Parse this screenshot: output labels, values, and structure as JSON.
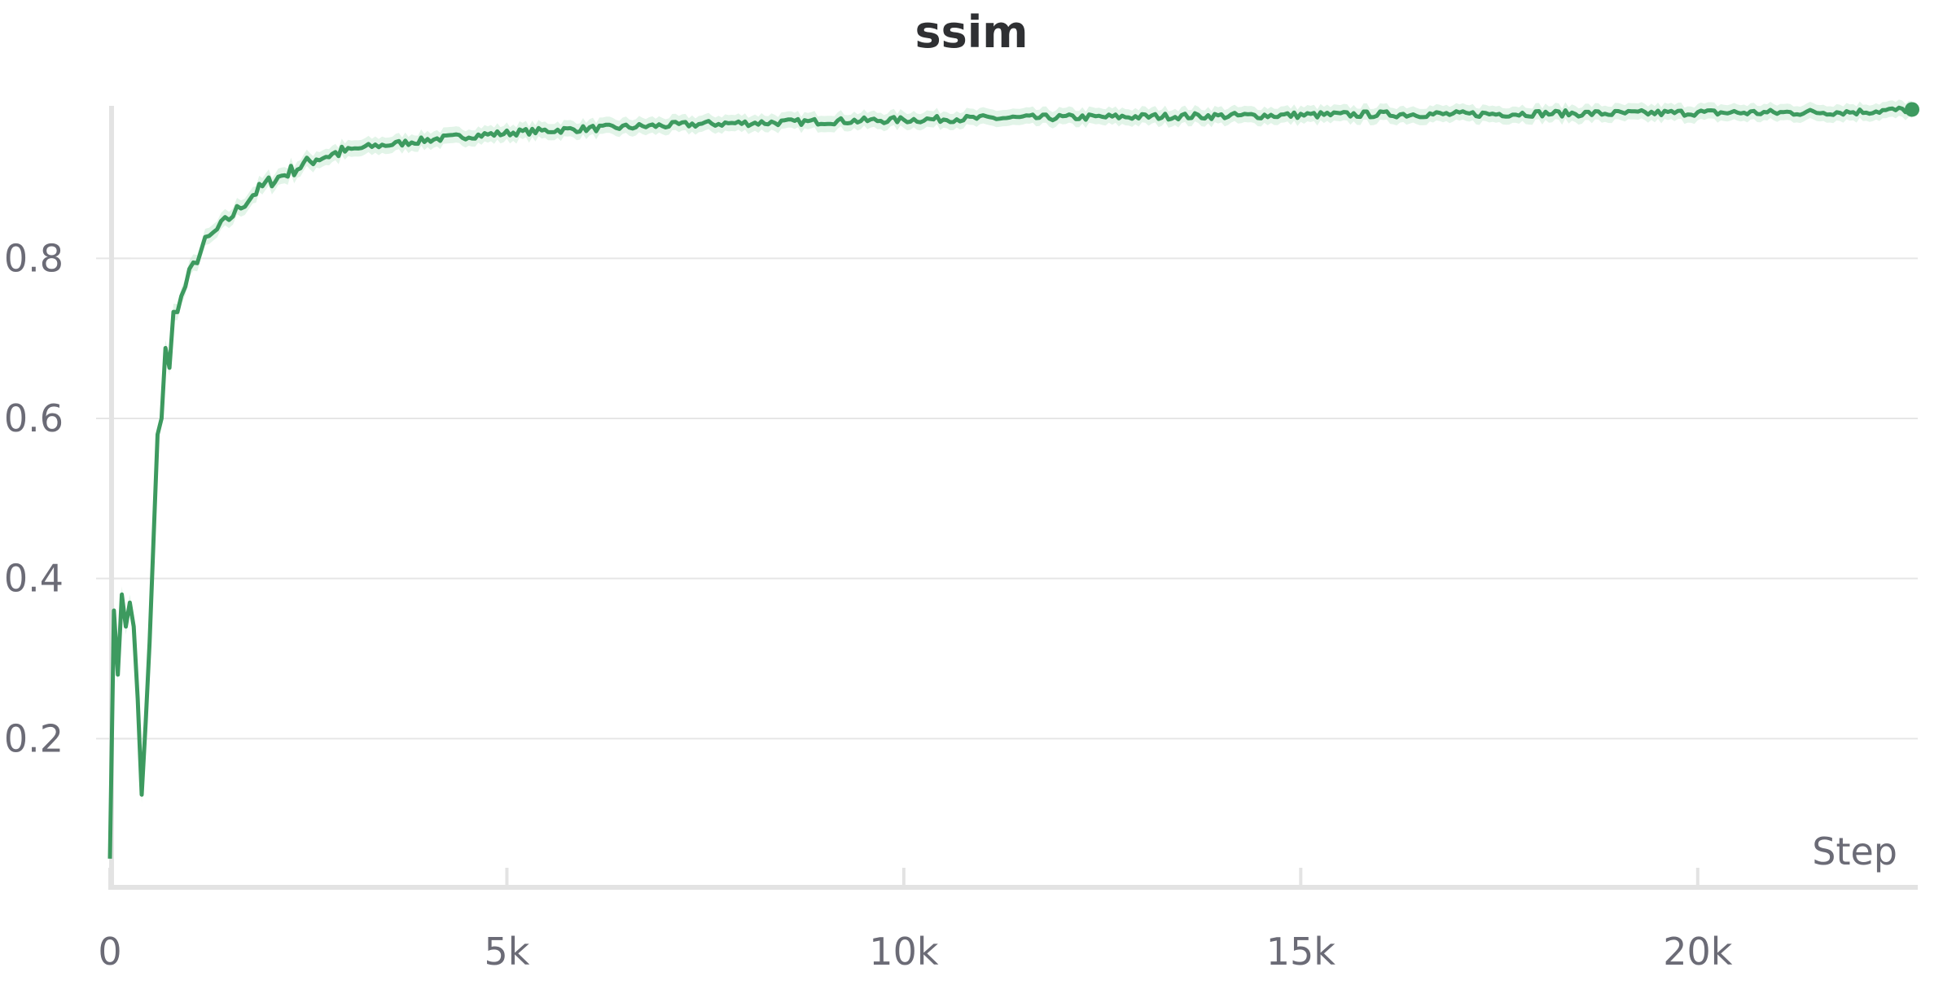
{
  "chart_data": {
    "type": "line",
    "title": "ssim",
    "xlabel": "Step",
    "ylabel": "",
    "xlim": [
      0,
      22700
    ],
    "ylim": [
      0.0,
      1.0
    ],
    "x_ticks": [
      0,
      5000,
      10000,
      15000,
      20000
    ],
    "x_tick_labels": [
      "0",
      "5k",
      "10k",
      "15k",
      "20k"
    ],
    "y_ticks": [
      0.2,
      0.4,
      0.6,
      0.8
    ],
    "y_tick_labels": [
      "0.2",
      "0.4",
      "0.6",
      "0.8"
    ],
    "grid": true,
    "legend": "none",
    "colors": {
      "line": "#3d9a5f",
      "band": "#bfe6cc",
      "grid": "#e6e6e6",
      "axis": "#e3e3e3"
    },
    "series": [
      {
        "x": [
          0,
          50,
          100,
          150,
          200,
          250,
          300,
          350,
          400,
          450,
          500,
          550,
          600,
          650,
          700,
          750,
          800,
          900,
          1000,
          1100,
          1200,
          1300,
          1400,
          1500,
          1600,
          1700,
          1800,
          2000,
          2200,
          2400,
          2600,
          2800,
          3000,
          3300,
          3600,
          4000,
          4400,
          4800,
          5200,
          5600,
          6000,
          6500,
          7000,
          7500,
          8000,
          8500,
          9000,
          9500,
          10000,
          10500,
          11000,
          12000,
          13000,
          14000,
          15000,
          16000,
          17000,
          18000,
          19000,
          20000,
          21000,
          22000,
          22700
        ],
        "y": [
          0.05,
          0.36,
          0.28,
          0.38,
          0.34,
          0.37,
          0.34,
          0.25,
          0.13,
          0.22,
          0.32,
          0.45,
          0.58,
          0.6,
          0.69,
          0.66,
          0.73,
          0.75,
          0.78,
          0.8,
          0.82,
          0.83,
          0.84,
          0.85,
          0.86,
          0.87,
          0.88,
          0.895,
          0.905,
          0.915,
          0.925,
          0.93,
          0.935,
          0.94,
          0.943,
          0.948,
          0.952,
          0.955,
          0.958,
          0.96,
          0.962,
          0.964,
          0.966,
          0.968,
          0.969,
          0.97,
          0.971,
          0.972,
          0.973,
          0.974,
          0.975,
          0.976,
          0.977,
          0.978,
          0.979,
          0.98,
          0.98,
          0.981,
          0.981,
          0.982,
          0.982,
          0.983,
          0.986
        ]
      }
    ]
  }
}
